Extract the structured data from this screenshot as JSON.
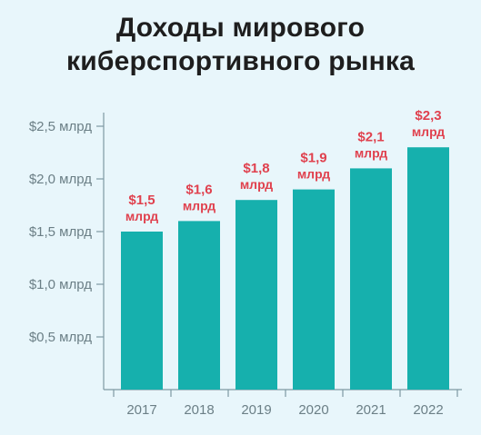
{
  "chart_data": {
    "type": "bar",
    "title_lines": [
      "Доходы мирового",
      "киберспортивного рынка"
    ],
    "categories": [
      "2017",
      "2018",
      "2019",
      "2020",
      "2021",
      "2022"
    ],
    "values": [
      1.5,
      1.6,
      1.8,
      1.9,
      2.1,
      2.3
    ],
    "value_labels": [
      [
        "$1,5",
        "млрд"
      ],
      [
        "$1,6",
        "млрд"
      ],
      [
        "$1,8",
        "млрд"
      ],
      [
        "$1,9",
        "млрд"
      ],
      [
        "$2,1",
        "млрд"
      ],
      [
        "$2,3",
        "млрд"
      ]
    ],
    "yticks": [
      0.5,
      1.0,
      1.5,
      2.0,
      2.5
    ],
    "ytick_labels": [
      "$0,5 млрд",
      "$1,0 млрд",
      "$1,5 млрд",
      "$2,0 млрд",
      "$2,5 млрд"
    ],
    "ylim": [
      0,
      2.5
    ],
    "xlabel": "",
    "ylabel": "",
    "grid": false,
    "colors": {
      "bar": "#16b0ad",
      "value_label": "#e0414e",
      "axis": "#7f9aa3",
      "tick_label": "#6b7f86",
      "title": "#1e1e1e",
      "background": "#e8f6fb"
    }
  }
}
